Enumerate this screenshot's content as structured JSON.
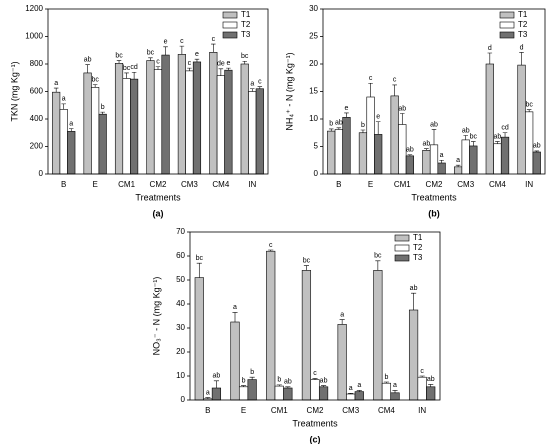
{
  "chart_data": [
    {
      "type": "bar",
      "caption": "(a)",
      "y_label": "TKN (mg Kg⁻¹)",
      "x_label": "Treatments",
      "categories": [
        "B",
        "E",
        "CM1",
        "CM2",
        "CM3",
        "CM4",
        "IN"
      ],
      "ylim": [
        0,
        1200
      ],
      "yticks": [
        0,
        200,
        400,
        600,
        800,
        1000,
        1200
      ],
      "legend": "upper right",
      "series": [
        {
          "name": "T1",
          "color": "#c0c0c0",
          "values": [
            595,
            735,
            805,
            825,
            870,
            885,
            800
          ],
          "errors": [
            30,
            60,
            20,
            20,
            60,
            60,
            20
          ],
          "letters": [
            "a",
            "ab",
            "bc",
            "bc",
            "c",
            "c",
            "bc"
          ]
        },
        {
          "name": "T2",
          "color": "#ffffff",
          "values": [
            470,
            630,
            695,
            760,
            750,
            715,
            600
          ],
          "errors": [
            40,
            20,
            40,
            20,
            20,
            50,
            20
          ],
          "letters": [
            "a",
            "bc",
            "bc",
            "c",
            "c",
            "de",
            "a"
          ]
        },
        {
          "name": "T3",
          "color": "#707070",
          "values": [
            310,
            435,
            690,
            865,
            815,
            755,
            620
          ],
          "errors": [
            20,
            15,
            50,
            60,
            20,
            15,
            15
          ],
          "letters": [
            "a",
            "b",
            "cd",
            "e",
            "e",
            "e",
            "c"
          ]
        }
      ]
    },
    {
      "type": "bar",
      "caption": "(b)",
      "y_label": "NH₄⁺ - N (mg Kg⁻¹)",
      "x_label": "Treatments",
      "categories": [
        "B",
        "E",
        "CM1",
        "CM2",
        "CM3",
        "CM4",
        "IN"
      ],
      "ylim": [
        0,
        30
      ],
      "yticks": [
        0,
        5,
        10,
        15,
        20,
        25,
        30
      ],
      "legend": "upper right",
      "series": [
        {
          "name": "T1",
          "color": "#c0c0c0",
          "values": [
            7.8,
            7.5,
            14.2,
            4.3,
            1.3,
            20.0,
            19.8
          ],
          "errors": [
            0.4,
            0.5,
            2.0,
            0.3,
            0.3,
            2.0,
            2.3
          ],
          "letters": [
            "b",
            "b",
            "c",
            "ab",
            "a",
            "d",
            "d"
          ]
        },
        {
          "name": "T2",
          "color": "#ffffff",
          "values": [
            8.1,
            14.0,
            9.0,
            5.3,
            6.2,
            5.5,
            11.3
          ],
          "errors": [
            0.3,
            2.5,
            2.0,
            2.8,
            0.8,
            0.4,
            0.4
          ],
          "letters": [
            "ab",
            "c",
            "ab",
            "ab",
            "ab",
            "ab",
            "bc"
          ]
        },
        {
          "name": "T3",
          "color": "#707070",
          "values": [
            10.3,
            7.2,
            3.3,
            2.0,
            5.1,
            6.7,
            4.0
          ],
          "errors": [
            0.8,
            2.3,
            0.2,
            0.5,
            0.8,
            0.8,
            0.2
          ],
          "letters": [
            "e",
            "e",
            "ab",
            "a",
            "bc",
            "cd",
            "ab"
          ]
        }
      ]
    },
    {
      "type": "bar",
      "caption": "(c)",
      "y_label": "NO₃⁻ - N (mg Kg⁻¹)",
      "x_label": "Treatments",
      "categories": [
        "B",
        "E",
        "CM1",
        "CM2",
        "CM3",
        "CM4",
        "IN"
      ],
      "ylim": [
        0,
        70
      ],
      "yticks": [
        0,
        10,
        20,
        30,
        40,
        50,
        60,
        70
      ],
      "legend": "upper right",
      "series": [
        {
          "name": "T1",
          "color": "#c0c0c0",
          "values": [
            51,
            32.5,
            62,
            54,
            31.5,
            54,
            37.5
          ],
          "errors": [
            6,
            4,
            0.5,
            2,
            2,
            4,
            7
          ],
          "letters": [
            "bc",
            "a",
            "c",
            "bc",
            "a",
            "bc",
            "ab"
          ]
        },
        {
          "name": "T2",
          "color": "#ffffff",
          "values": [
            0.5,
            5.5,
            5.8,
            8.5,
            2.5,
            7,
            9.5
          ],
          "errors": [
            0.5,
            0.5,
            0.5,
            0.5,
            0.3,
            0.5,
            0.5
          ],
          "letters": [
            "a",
            "b",
            "b",
            "c",
            "a",
            "b",
            "c"
          ]
        },
        {
          "name": "T3",
          "color": "#707070",
          "values": [
            5,
            8.5,
            5,
            5.5,
            3.5,
            3,
            5.5
          ],
          "errors": [
            3,
            1,
            0.5,
            0.5,
            0.5,
            1,
            1
          ],
          "letters": [
            "ab",
            "b",
            "ab",
            "ab",
            "a",
            "a",
            "ab"
          ]
        }
      ]
    }
  ]
}
